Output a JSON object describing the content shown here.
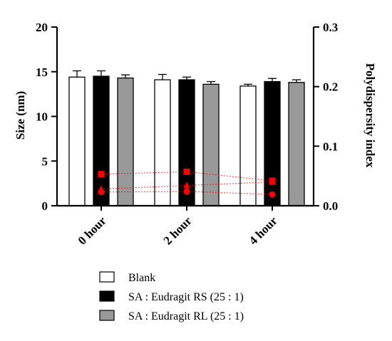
{
  "chart_data": {
    "type": "bar",
    "categories": [
      "0 hour",
      "2 hour",
      "4 hour"
    ],
    "series": [
      {
        "name": "Blank",
        "values": [
          14.4,
          14.1,
          13.4
        ],
        "errors": [
          0.7,
          0.6,
          0.2
        ],
        "color": "#ffffff"
      },
      {
        "name": "SA : Eudragit RS (25 : 1)",
        "values": [
          14.5,
          14.1,
          13.9
        ],
        "errors": [
          0.6,
          0.3,
          0.35
        ],
        "color": "#000000"
      },
      {
        "name": "SA : Eudragit RL (25 : 1)",
        "values": [
          14.3,
          13.6,
          13.8
        ],
        "errors": [
          0.35,
          0.3,
          0.3
        ],
        "color": "#999999"
      }
    ],
    "pdi_series": [
      {
        "marker": "square",
        "values": [
          0.053,
          0.057,
          0.042
        ]
      },
      {
        "marker": "triangle",
        "values": [
          0.028,
          0.034,
          0.04
        ]
      },
      {
        "marker": "circle",
        "values": [
          0.023,
          0.024,
          0.019
        ]
      }
    ],
    "marker_color": "#ff0000",
    "ylabel": "Size (nm)",
    "ylim": [
      0,
      20
    ],
    "yticks": [
      0,
      5,
      10,
      15,
      20
    ],
    "y2label": "Polydispersity index",
    "y2lim": [
      0,
      0.3
    ],
    "y2ticks": [
      "0.0",
      "0.1",
      "0.2",
      "0.3"
    ],
    "legend_placement": "bottom"
  }
}
